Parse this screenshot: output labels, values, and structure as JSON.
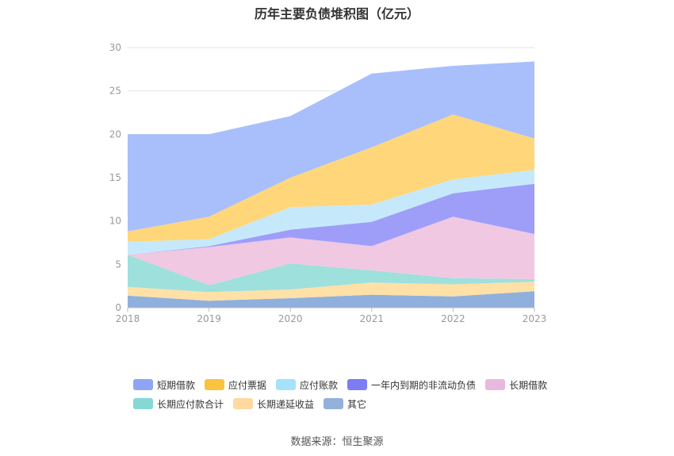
{
  "title": "历年主要负债堆积图（亿元）",
  "source": "数据来源：恒生聚源",
  "chart_data": {
    "type": "area",
    "stacked": true,
    "x": [
      "2018",
      "2019",
      "2020",
      "2021",
      "2022",
      "2023"
    ],
    "ylim": [
      0,
      30
    ],
    "yticks": [
      0,
      5,
      10,
      15,
      20,
      25,
      30
    ],
    "grid": true,
    "legend_position": "bottom",
    "series": [
      {
        "name": "其它",
        "color": "#8fb0dd",
        "values": [
          1.4,
          0.8,
          1.1,
          1.5,
          1.3,
          1.9
        ]
      },
      {
        "name": "长期递延收益",
        "color": "#ffe0a6",
        "values": [
          1.0,
          1.0,
          1.0,
          1.4,
          1.4,
          1.1
        ]
      },
      {
        "name": "长期应付款合计",
        "color": "#9ee0dc",
        "values": [
          3.7,
          0.8,
          3.0,
          1.4,
          0.7,
          0.3
        ]
      },
      {
        "name": "长期借款",
        "color": "#f0c8e2",
        "values": [
          0.0,
          4.4,
          3.0,
          2.8,
          7.1,
          5.2
        ]
      },
      {
        "name": "一年内到期的非流动负债",
        "color": "#9e9ef9",
        "values": [
          0.0,
          0.1,
          0.9,
          2.8,
          2.7,
          5.8
        ]
      },
      {
        "name": "应付账款",
        "color": "#c5e9fb",
        "values": [
          1.5,
          0.8,
          2.6,
          2.0,
          1.6,
          1.6
        ]
      },
      {
        "name": "应付票据",
        "color": "#ffd77a",
        "values": [
          1.2,
          2.6,
          3.4,
          6.6,
          7.5,
          3.6
        ]
      },
      {
        "name": "短期借款",
        "color": "#a9bffc",
        "values": [
          11.2,
          9.5,
          7.1,
          8.5,
          5.6,
          8.9
        ]
      }
    ]
  },
  "legend": [
    [
      {
        "name": "短期借款",
        "color": "#8ea5f7"
      },
      {
        "name": "应付票据",
        "color": "#f8c440"
      },
      {
        "name": "应付账款",
        "color": "#a6e2fa"
      },
      {
        "name": "一年内到期的非流动负债",
        "color": "#7e7cf2"
      },
      {
        "name": "长期借款",
        "color": "#e8b9dc"
      }
    ],
    [
      {
        "name": "长期应付款合计",
        "color": "#86d8d4"
      },
      {
        "name": "长期递延收益",
        "color": "#ffd9a0"
      },
      {
        "name": "其它",
        "color": "#94b1db"
      }
    ]
  ]
}
